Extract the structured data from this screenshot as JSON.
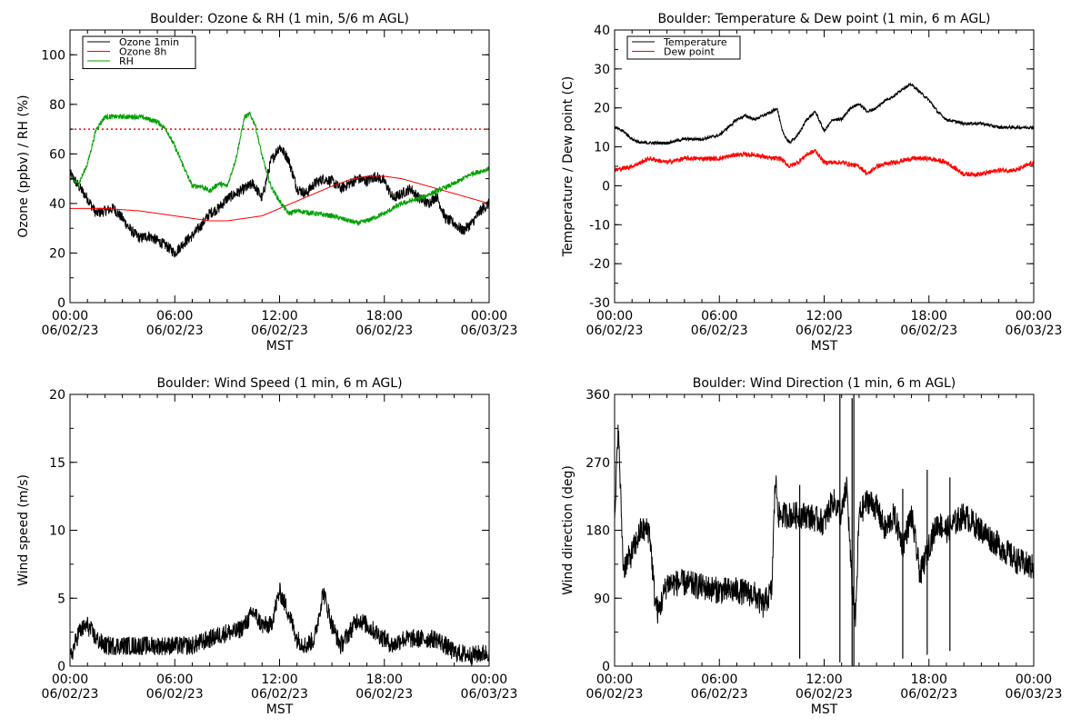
{
  "chart_data": [
    {
      "id": "ozone_rh",
      "type": "line",
      "title": "Boulder: Ozone & RH (1 min, 5/6 m AGL)",
      "ylabel": "Ozone (ppbv) / RH (%)",
      "xlabel": "MST",
      "xlim": [
        0,
        24
      ],
      "ylim": [
        0,
        110
      ],
      "y_ticks": [
        0,
        20,
        40,
        60,
        80,
        100
      ],
      "x_tick_labels": [
        {
          "time": "00:00",
          "date": "06/02/23"
        },
        {
          "time": "06:00",
          "date": "06/02/23"
        },
        {
          "time": "12:00",
          "date": "06/02/23"
        },
        {
          "time": "18:00",
          "date": "06/02/23"
        },
        {
          "time": "00:00",
          "date": "06/03/23"
        }
      ],
      "hline": {
        "value": 70,
        "color": "#ff0000",
        "style": "dotted"
      },
      "series": [
        {
          "name": "Ozone 1min",
          "color": "#000000",
          "x": [
            0,
            0.5,
            1,
            1.5,
            2,
            2.5,
            3,
            3.5,
            4,
            4.5,
            5,
            5.5,
            6,
            6.5,
            7,
            7.5,
            8,
            8.5,
            9,
            9.5,
            10,
            10.5,
            11,
            11.5,
            12,
            12.5,
            13,
            13.5,
            14,
            14.5,
            15,
            15.5,
            16,
            16.5,
            17,
            17.5,
            18,
            18.5,
            19,
            19.5,
            20,
            20.5,
            21,
            21.5,
            22,
            22.5,
            23,
            23.5,
            24
          ],
          "y": [
            52,
            47,
            42,
            36,
            37,
            38,
            34,
            29,
            26,
            27,
            25,
            23,
            20,
            24,
            27,
            31,
            36,
            38,
            42,
            44,
            46,
            48,
            42,
            57,
            63,
            58,
            46,
            44,
            48,
            50,
            49,
            46,
            48,
            50,
            49,
            51,
            49,
            42,
            44,
            46,
            42,
            40,
            43,
            34,
            32,
            29,
            32,
            37,
            40
          ],
          "noise": 2.2
        },
        {
          "name": "Ozone 8h",
          "color": "#ff0000",
          "x": [
            0,
            1,
            2,
            3,
            4,
            5,
            6,
            7,
            8,
            9,
            10,
            11,
            12,
            13,
            14,
            15,
            16,
            17,
            18,
            19,
            20,
            21,
            22,
            23,
            24
          ],
          "y": [
            38,
            38,
            38,
            37.5,
            37,
            36,
            35,
            34,
            33,
            33,
            34,
            35,
            38,
            41,
            44,
            47,
            49.5,
            51,
            51,
            50,
            48,
            46,
            44,
            42,
            40
          ],
          "noise": 0
        },
        {
          "name": "RH",
          "color": "#00a000",
          "x": [
            0,
            0.5,
            1,
            1.5,
            2,
            3,
            4,
            5,
            5.5,
            6,
            6.5,
            7,
            7.5,
            8,
            8.5,
            9,
            9.5,
            10,
            10.3,
            10.6,
            11,
            11.5,
            12,
            12.5,
            13,
            14,
            15,
            16,
            16.5,
            17,
            18,
            19,
            20,
            21,
            22,
            23,
            24
          ],
          "y": [
            50,
            48,
            56,
            70,
            75,
            75,
            75,
            73,
            70,
            63,
            55,
            47,
            47,
            45,
            48,
            47,
            58,
            75,
            76,
            72,
            59,
            47,
            41,
            36,
            37,
            36,
            35,
            33,
            32,
            33,
            36,
            40,
            42,
            45,
            48,
            52,
            54
          ],
          "noise": 1.0
        }
      ]
    },
    {
      "id": "temp_dew",
      "type": "line",
      "title": "Boulder: Temperature & Dew point (1 min, 6 m AGL)",
      "ylabel": "Temperature / Dew point (C)",
      "xlabel": "MST",
      "xlim": [
        0,
        24
      ],
      "ylim": [
        -30,
        40
      ],
      "y_ticks": [
        -30,
        -20,
        -10,
        0,
        10,
        20,
        30,
        40
      ],
      "x_tick_labels": [
        {
          "time": "00:00",
          "date": "06/02/23"
        },
        {
          "time": "06:00",
          "date": "06/02/23"
        },
        {
          "time": "12:00",
          "date": "06/02/23"
        },
        {
          "time": "18:00",
          "date": "06/02/23"
        },
        {
          "time": "00:00",
          "date": "06/03/23"
        }
      ],
      "series": [
        {
          "name": "Temperature",
          "color": "#000000",
          "x": [
            0,
            0.5,
            1,
            1.5,
            2,
            3,
            4,
            5,
            6,
            7,
            7.5,
            8,
            8.5,
            9,
            9.3,
            9.6,
            10,
            10.5,
            11,
            11.5,
            12,
            12.5,
            13,
            13.5,
            14,
            14.5,
            15,
            15.5,
            16,
            16.5,
            17,
            17.5,
            18,
            18.5,
            19,
            20,
            21,
            22,
            23,
            24
          ],
          "y": [
            15,
            14,
            12,
            11,
            11,
            11,
            12,
            12,
            13,
            17,
            18,
            17,
            18,
            19,
            20,
            14,
            11,
            13,
            17,
            19,
            14,
            17,
            17,
            20,
            21,
            19,
            20,
            22,
            23,
            25,
            26,
            24,
            22,
            19,
            17,
            16,
            16,
            15,
            15,
            15
          ],
          "noise": 0.4
        },
        {
          "name": "Dew point",
          "color": "#ff0000",
          "x": [
            0,
            1,
            2,
            3,
            4,
            5,
            6,
            7,
            8,
            9,
            9.5,
            10,
            10.5,
            11,
            11.5,
            12,
            12.5,
            13,
            14,
            14.5,
            15,
            16,
            17,
            18,
            19,
            20,
            21,
            22,
            23,
            24
          ],
          "y": [
            4,
            5,
            7,
            6,
            7,
            7,
            7,
            8,
            8,
            7,
            7,
            5,
            6,
            8,
            9,
            6,
            6,
            6,
            5,
            3,
            5,
            6,
            7,
            7,
            6,
            3,
            3,
            4,
            4,
            6
          ],
          "noise": 0.6
        }
      ]
    },
    {
      "id": "wind_speed",
      "type": "line",
      "title": "Boulder: Wind Speed (1 min, 6 m AGL)",
      "ylabel": "Wind speed (m/s)",
      "xlabel": "MST",
      "xlim": [
        0,
        24
      ],
      "ylim": [
        0,
        20
      ],
      "y_ticks": [
        0,
        5,
        10,
        15,
        20
      ],
      "x_tick_labels": [
        {
          "time": "00:00",
          "date": "06/02/23"
        },
        {
          "time": "06:00",
          "date": "06/02/23"
        },
        {
          "time": "12:00",
          "date": "06/02/23"
        },
        {
          "time": "18:00",
          "date": "06/02/23"
        },
        {
          "time": "00:00",
          "date": "06/03/23"
        }
      ],
      "series": [
        {
          "name": "",
          "color": "#000000",
          "x": [
            0,
            0.5,
            1,
            1.5,
            2,
            3,
            4,
            5,
            6,
            7,
            8,
            9,
            9.5,
            10,
            10.5,
            11,
            11.5,
            12,
            12.5,
            13,
            13.5,
            14,
            14.5,
            15,
            15.5,
            16,
            16.5,
            17,
            17.5,
            18,
            18.5,
            19,
            20,
            21,
            22,
            23,
            24
          ],
          "y": [
            0.5,
            2.5,
            3,
            2,
            1.5,
            1.5,
            1.5,
            1.5,
            1.5,
            1.5,
            2,
            2.5,
            2.5,
            3,
            4,
            3,
            3,
            5.5,
            4,
            2,
            1.5,
            2,
            5.5,
            3,
            1.5,
            2.5,
            3.5,
            3,
            2.5,
            2,
            1.5,
            2,
            2,
            2,
            1,
            0.8,
            1
          ],
          "noise": 0.7
        }
      ]
    },
    {
      "id": "wind_dir",
      "type": "line",
      "title": "Boulder: Wind Direction (1 min, 6 m AGL)",
      "ylabel": "Wind direction (deg)",
      "xlabel": "MST",
      "xlim": [
        0,
        24
      ],
      "ylim": [
        0,
        360
      ],
      "y_ticks": [
        0,
        90,
        180,
        270,
        360
      ],
      "x_tick_labels": [
        {
          "time": "00:00",
          "date": "06/02/23"
        },
        {
          "time": "06:00",
          "date": "06/02/23"
        },
        {
          "time": "12:00",
          "date": "06/02/23"
        },
        {
          "time": "18:00",
          "date": "06/02/23"
        },
        {
          "time": "00:00",
          "date": "06/03/23"
        }
      ],
      "series": [
        {
          "name": "",
          "color": "#000000",
          "x": [
            0,
            0.2,
            0.5,
            1,
            1.5,
            2,
            2.3,
            2.5,
            3,
            4,
            5,
            6,
            7,
            8,
            8.5,
            9,
            9.2,
            9.4,
            9.6,
            10,
            11,
            12,
            12.5,
            13,
            13.3,
            13.6,
            13.8,
            14,
            14.5,
            15,
            15.5,
            16,
            16.5,
            17,
            17.5,
            18,
            18.5,
            19,
            20,
            21,
            22,
            23,
            24
          ],
          "y": [
            180,
            320,
            130,
            150,
            180,
            180,
            90,
            70,
            110,
            110,
            105,
            100,
            100,
            95,
            80,
            100,
            250,
            200,
            200,
            200,
            200,
            190,
            220,
            200,
            240,
            100,
            60,
            200,
            220,
            210,
            180,
            200,
            160,
            200,
            120,
            160,
            190,
            180,
            200,
            180,
            160,
            140,
            130
          ],
          "noise": 18
        }
      ]
    }
  ],
  "legend_ozone": [
    "Ozone 1min",
    "Ozone 8h",
    "RH"
  ],
  "legend_temp": [
    "Temperature",
    "Dew point"
  ]
}
